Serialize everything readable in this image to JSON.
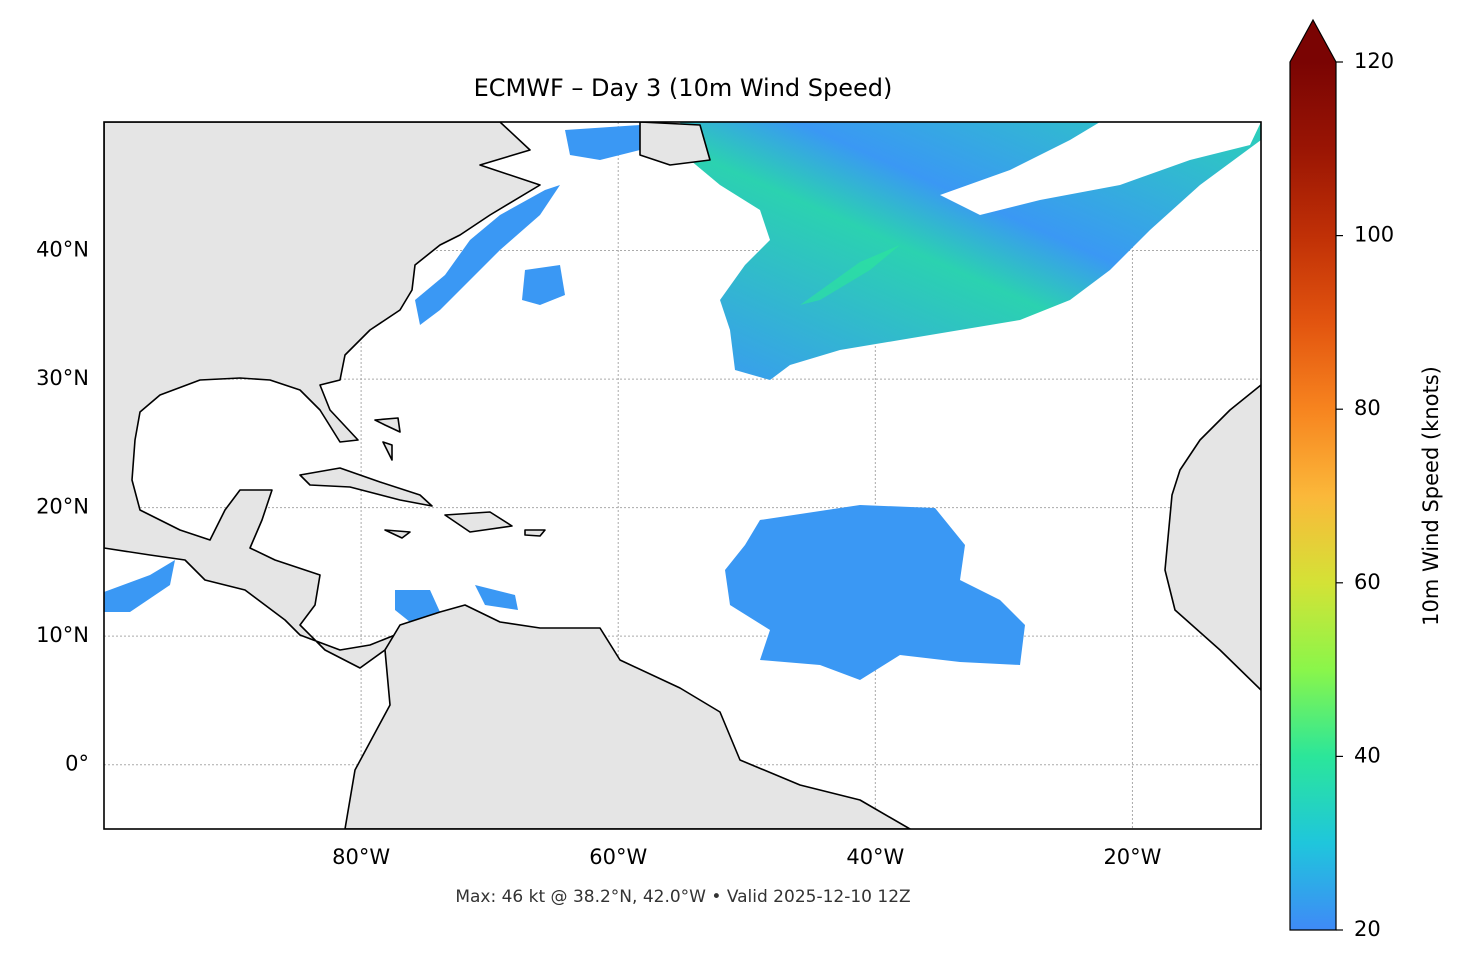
{
  "map": {
    "title": "ECMWF – Day 3 (10m Wind Speed)",
    "xlim": [
      -100,
      -10
    ],
    "ylim": [
      -5,
      50
    ],
    "xticks": [
      {
        "value": -80,
        "label": "80°W"
      },
      {
        "value": -60,
        "label": "60°W"
      },
      {
        "value": -40,
        "label": "40°W"
      },
      {
        "value": -20,
        "label": "20°W"
      }
    ],
    "yticks": [
      {
        "value": 0,
        "label": "0°"
      },
      {
        "value": 10,
        "label": "10°N"
      },
      {
        "value": 20,
        "label": "20°N"
      },
      {
        "value": 30,
        "label": "30°N"
      },
      {
        "value": 40,
        "label": "40°N"
      }
    ],
    "grid": true,
    "footer": "Max: 46 kt @ 38.2°N, 42.0°W • Valid 2025-12-10 12Z"
  },
  "colorbar": {
    "label": "10m Wind Speed (knots)",
    "lim": [
      20,
      120
    ],
    "ticks": [
      20,
      40,
      60,
      80,
      100,
      120
    ]
  }
}
